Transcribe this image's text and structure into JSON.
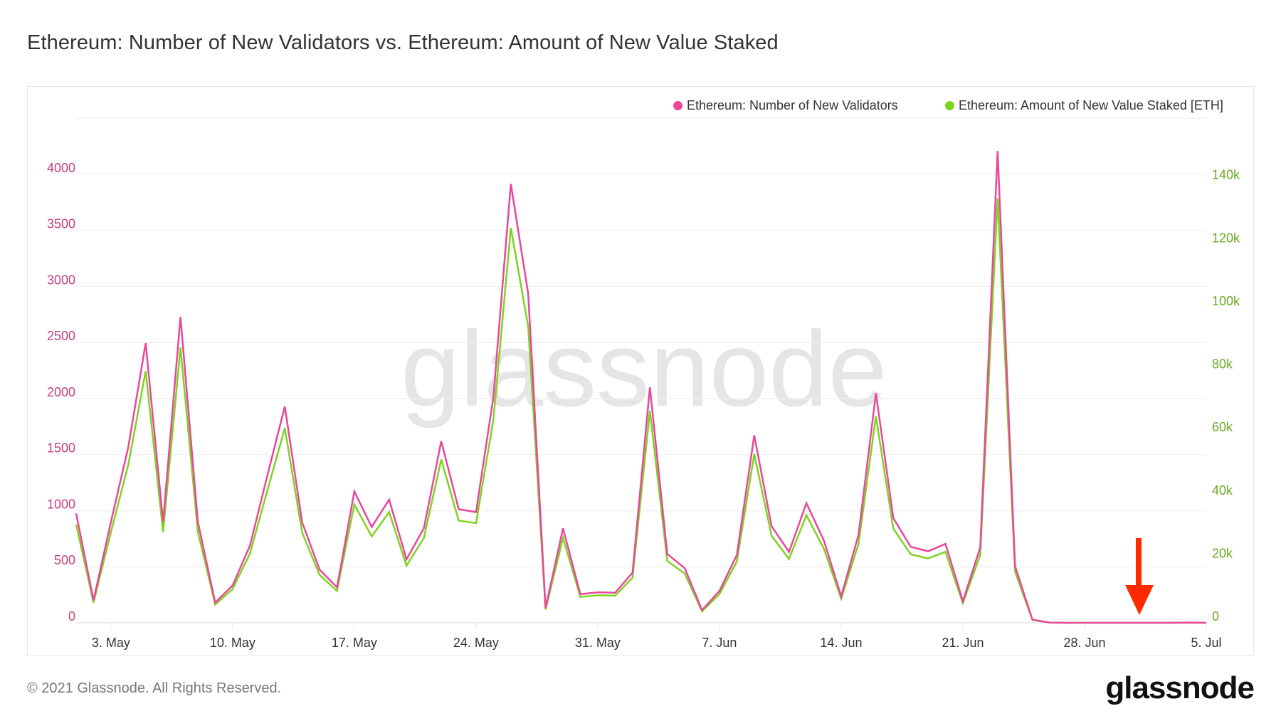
{
  "title": "Ethereum: Number of New Validators vs. Ethereum: Amount of New Value Staked",
  "footer": "© 2021 Glassnode. All Rights Reserved.",
  "logo": "glassnode",
  "watermark": "glassnode",
  "colors": {
    "validators": "#e8479b",
    "staked": "#7ed321",
    "validators_axis": "#c4407f",
    "staked_axis": "#6aab1f",
    "arrow": "#ff2a00"
  },
  "annotation": {
    "type": "arrow-down",
    "points_to_date": "2 Jul"
  },
  "chart_data": {
    "type": "line",
    "title": "Ethereum: Number of New Validators vs. Ethereum: Amount of New Value Staked",
    "legend_position": "top-right",
    "grid": true,
    "x_start": "2021-05-01",
    "x_end": "2021-07-05",
    "x_ticks": [
      "3. May",
      "10. May",
      "17. May",
      "24. May",
      "31. May",
      "7. Jun",
      "14. Jun",
      "21. Jun",
      "28. Jun",
      "5. Jul"
    ],
    "y_left": {
      "ticks": [
        "0",
        "500",
        "1000",
        "1500",
        "2000",
        "2500",
        "3000",
        "3500",
        "4000"
      ],
      "range": [
        0,
        4500
      ]
    },
    "y_right": {
      "ticks": [
        "0",
        "20k",
        "40k",
        "60k",
        "80k",
        "100k",
        "120k",
        "140k"
      ],
      "range": [
        0,
        160000
      ]
    },
    "series": [
      {
        "name": "Ethereum: Number of New Validators",
        "axis": "left",
        "values": [
          975,
          201,
          900,
          1568,
          2494,
          900,
          2727,
          900,
          180,
          333,
          689,
          1314,
          1929,
          895,
          474,
          316,
          1171,
          855,
          1098,
          566,
          842,
          1619,
          1013,
          987,
          2013,
          3914,
          2935,
          132,
          842,
          255,
          271,
          268,
          447,
          2100,
          613,
          487,
          113,
          284,
          605,
          1671,
          861,
          632,
          1066,
          737,
          237,
          785,
          2047,
          934,
          677,
          638,
          704,
          193,
          671,
          4207,
          505,
          28,
          2,
          0,
          0,
          0,
          0,
          0,
          0,
          0,
          2,
          0
        ]
      },
      {
        "name": "Ethereum: Amount of New Value Staked [ETH]",
        "axis": "right",
        "values": [
          31200,
          6400,
          28800,
          50200,
          79800,
          28800,
          87300,
          28800,
          5800,
          10700,
          22000,
          42000,
          61700,
          28600,
          15200,
          10100,
          37500,
          27400,
          35100,
          18100,
          26900,
          51800,
          32400,
          31600,
          64400,
          125200,
          93900,
          4200,
          26900,
          8200,
          8700,
          8600,
          14300,
          67200,
          19600,
          15600,
          3600,
          9100,
          19400,
          53500,
          27600,
          20200,
          34100,
          23600,
          7600,
          25100,
          65500,
          29900,
          21700,
          20400,
          22500,
          6200,
          21500,
          134600,
          16200,
          900,
          64,
          0,
          0,
          0,
          0,
          0,
          0,
          0,
          64,
          0
        ]
      }
    ]
  }
}
